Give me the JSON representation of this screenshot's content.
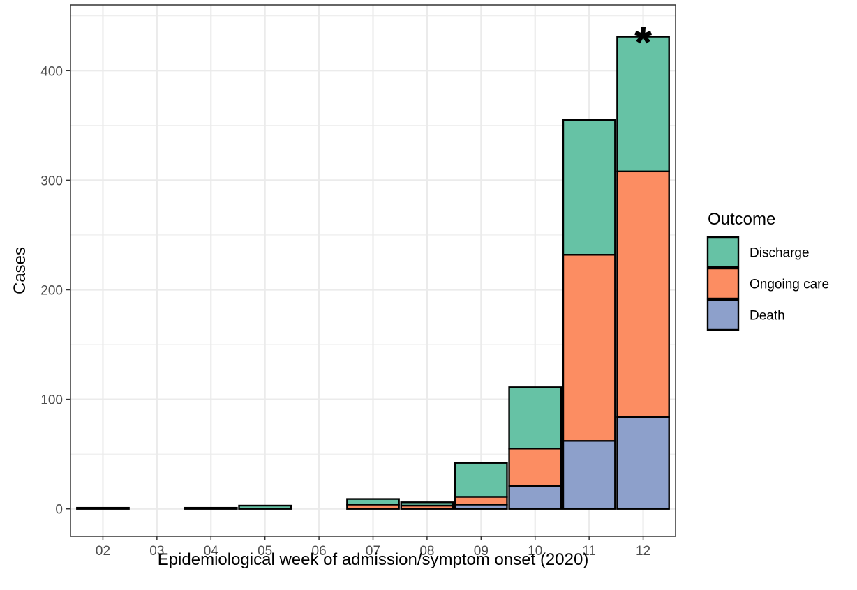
{
  "chart_data": {
    "type": "bar",
    "stacked": true,
    "title": "",
    "xlabel": "Epidemiological week of admission/symptom onset (2020)",
    "ylabel": "Cases",
    "categories": [
      "02",
      "03",
      "04",
      "05",
      "06",
      "07",
      "08",
      "09",
      "10",
      "11",
      "12"
    ],
    "ylim": [
      -25,
      460
    ],
    "yticks": [
      0,
      100,
      200,
      300,
      400
    ],
    "grid": true,
    "legend": {
      "title": "Outcome",
      "position": "right",
      "entries": [
        "Discharge",
        "Ongoing care",
        "Death"
      ]
    },
    "series": [
      {
        "name": "Death",
        "color": "#8da0cb",
        "values": [
          0,
          0,
          0,
          0,
          0,
          0,
          0,
          4,
          21,
          62,
          84
        ]
      },
      {
        "name": "Ongoing care",
        "color": "#fc8d62",
        "values": [
          0,
          0,
          0,
          0,
          0,
          4,
          3,
          7,
          34,
          170,
          224
        ]
      },
      {
        "name": "Discharge",
        "color": "#66c2a5",
        "values": [
          1,
          0,
          1,
          3,
          0,
          5,
          3,
          31,
          56,
          123,
          123
        ]
      }
    ],
    "annotations": [
      {
        "category": "12",
        "text": "*"
      }
    ]
  }
}
